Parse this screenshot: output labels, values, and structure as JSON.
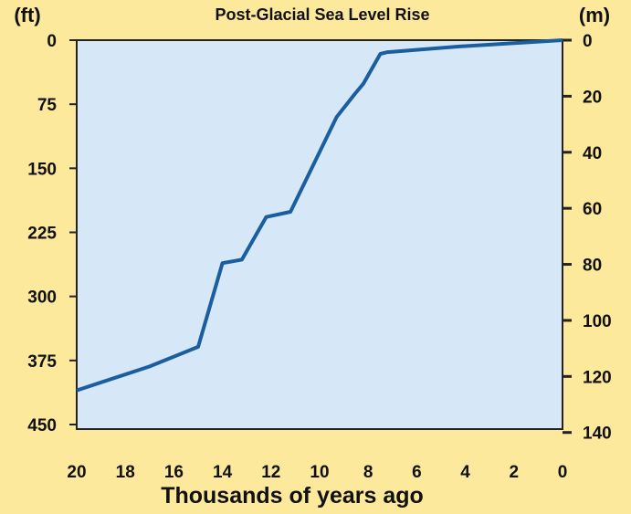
{
  "chart_data": {
    "type": "line",
    "title": "Post-Glacial Sea Level Rise",
    "xlabel": "Thousands of years ago",
    "ylabel_left": "(ft)",
    "ylabel_right": "(m)",
    "xlim": [
      20,
      0
    ],
    "ylim_ft": [
      0,
      450
    ],
    "ylim_m": [
      0,
      140
    ],
    "y_inverted": true,
    "x_ticks": [
      "20",
      "18",
      "16",
      "14",
      "12",
      "10",
      "8",
      "6",
      "4",
      "2",
      "0"
    ],
    "y_ticks_ft": [
      "0",
      "75",
      "150",
      "225",
      "300",
      "375",
      "450"
    ],
    "y_ticks_m": [
      "0",
      "20",
      "40",
      "60",
      "80",
      "100",
      "120",
      "140"
    ],
    "grid": false,
    "colors": {
      "background": "#fde99b",
      "plot": "#d6e8f8",
      "line": "#1a5e9f",
      "axis": "#222222"
    },
    "series": [
      {
        "x": [
          20,
          17.0,
          15.0,
          14.0,
          13.2,
          12.2,
          11.2,
          9.3,
          8.55,
          8.2,
          7.5,
          7.2,
          4.3,
          0
        ],
        "y_ft": [
          410,
          382,
          359,
          261,
          257,
          207,
          201,
          90,
          63,
          51,
          16,
          14,
          7.5,
          0
        ]
      }
    ]
  }
}
